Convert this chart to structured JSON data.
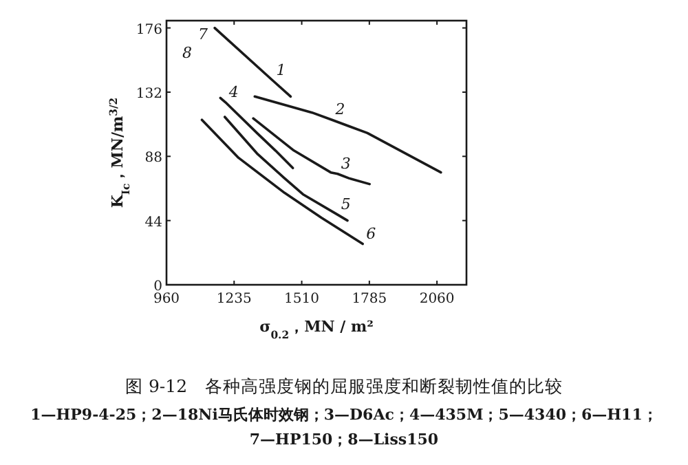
{
  "chart_data": {
    "type": "line",
    "title": "图 9-12　各种高强度钢的屈服强度和断裂韧性值的比较",
    "xlabel": "σ$_{0.2}$，MN / m²",
    "ylabel": "K$_{Ic}$，MN/m$^{3/2}$",
    "xlim": [
      960,
      2180
    ],
    "ylim": [
      0,
      181
    ],
    "xticks": [
      960,
      1235,
      1510,
      1785,
      2060
    ],
    "yticks": [
      0,
      44,
      88,
      132,
      176
    ],
    "grid": false,
    "marker": "none",
    "line_style": "solid",
    "series": [
      {
        "color": "#1a1a1a",
        "x": [
          1156,
          1392,
          1465
        ],
        "values": [
          176,
          140,
          129
        ]
      },
      {
        "color": "#1a1a1a",
        "x": [
          1319,
          1552,
          1633,
          1777,
          2076
        ],
        "values": [
          129,
          118,
          113,
          104,
          77
        ]
      },
      {
        "color": "#1a1a1a",
        "x": [
          1313,
          1478,
          1628,
          1656,
          1702,
          1786
        ],
        "values": [
          114,
          92,
          77,
          76,
          73,
          69
        ]
      },
      {
        "color": "#1a1a1a",
        "x": [
          1179,
          1200,
          1328,
          1403,
          1474
        ],
        "values": [
          128,
          125,
          104,
          92,
          80
        ]
      },
      {
        "color": "#1a1a1a",
        "x": [
          1197,
          1328,
          1440,
          1515,
          1656,
          1696
        ],
        "values": [
          115,
          90,
          73,
          62,
          48,
          44
        ]
      },
      {
        "color": "#1a1a1a",
        "x": [
          1104,
          1253,
          1440,
          1590,
          1758
        ],
        "values": [
          113,
          87,
          63,
          46,
          28
        ]
      }
    ],
    "annotations": [
      {
        "text": "1",
        "x": 1392,
        "y": 140
      },
      {
        "text": "2",
        "x": 1633,
        "y": 113
      },
      {
        "text": "3",
        "x": 1656,
        "y": 76
      },
      {
        "text": "4",
        "x": 1200,
        "y": 125
      },
      {
        "text": "5",
        "x": 1656,
        "y": 48
      },
      {
        "text": "6",
        "x": 1758,
        "y": 28
      },
      {
        "text": "7",
        "x": 1156,
        "y": 176
      },
      "8",
      "1—HP9-4-25；2—18Ni马氏体时效钢；3—D6Ac；4—435M；5—4340；6—H11；",
      "7—HP150；8—Liss150"
    ]
  }
}
